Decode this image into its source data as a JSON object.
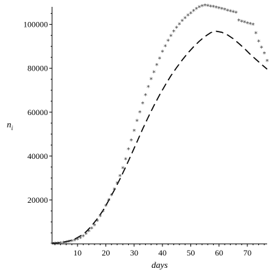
{
  "chart_data": {
    "type": "scatter+line",
    "title": "",
    "xlabel": "days",
    "ylabel_main": "n",
    "ylabel_sub": "i",
    "xlim": [
      1,
      77
    ],
    "ylim": [
      0,
      108000
    ],
    "x_ticks": [
      10,
      20,
      30,
      40,
      50,
      60,
      70
    ],
    "x_tick_labels": [
      "10",
      "20",
      "30",
      "40",
      "50",
      "60",
      "70"
    ],
    "y_ticks": [
      20000,
      40000,
      60000,
      80000,
      100000
    ],
    "y_tick_labels": [
      "20000",
      "40000",
      "60000",
      "80000",
      "100000"
    ],
    "grid": false,
    "observed": {
      "marker": "star",
      "x": [
        1,
        2,
        3,
        4,
        5,
        6,
        7,
        8,
        9,
        10,
        11,
        12,
        13,
        14,
        15,
        16,
        17,
        18,
        19,
        20,
        21,
        22,
        23,
        24,
        25,
        26,
        27,
        28,
        29,
        30,
        31,
        32,
        33,
        34,
        35,
        36,
        37,
        38,
        39,
        40,
        41,
        42,
        43,
        44,
        45,
        46,
        47,
        48,
        49,
        50,
        51,
        52,
        53,
        54,
        55,
        56,
        57,
        58,
        59,
        60,
        61,
        62,
        63,
        64,
        65,
        66,
        67,
        68,
        69,
        70,
        71,
        72,
        73,
        74,
        75,
        76,
        77
      ],
      "y": [
        100,
        150,
        200,
        300,
        450,
        650,
        900,
        1200,
        1600,
        2100,
        2700,
        3500,
        4500,
        5700,
        7000,
        8500,
        10500,
        12700,
        14900,
        17300,
        19800,
        22200,
        24800,
        27700,
        30900,
        34500,
        38600,
        43000,
        47200,
        51500,
        56000,
        60000,
        64000,
        67800,
        71500,
        75000,
        78200,
        81500,
        84500,
        87500,
        90000,
        92600,
        94700,
        96800,
        98500,
        100100,
        101600,
        102900,
        104100,
        105100,
        106100,
        107000,
        107800,
        108300,
        108600,
        108500,
        108200,
        108000,
        107700,
        107400,
        107000,
        106700,
        106300,
        106000,
        105700,
        105300,
        101700,
        101300,
        100900,
        100500,
        100200,
        99900,
        96000,
        92200,
        89500,
        86800,
        83300
      ]
    },
    "model": {
      "style": "dashed",
      "x": [
        1,
        3,
        5,
        7,
        9,
        11,
        13,
        15,
        17,
        19,
        21,
        23,
        25,
        27,
        29,
        31,
        33,
        35,
        37,
        39,
        41,
        43,
        45,
        47,
        49,
        51,
        53,
        55,
        57,
        58,
        59,
        61,
        63,
        65,
        67,
        69,
        71,
        73,
        75,
        77
      ],
      "y": [
        300,
        500,
        800,
        1300,
        2200,
        3600,
        5500,
        8200,
        11500,
        15200,
        19700,
        24500,
        29600,
        35000,
        40700,
        46400,
        52300,
        57800,
        63000,
        67900,
        72400,
        76600,
        80300,
        83800,
        87000,
        89800,
        92300,
        94500,
        96200,
        96700,
        96900,
        96400,
        95200,
        93500,
        91300,
        89000,
        86400,
        84100,
        81800,
        79600
      ]
    },
    "colors": {
      "markers": "#333333",
      "line": "#000000",
      "axes": "#000000",
      "background": "#ffffff"
    }
  }
}
